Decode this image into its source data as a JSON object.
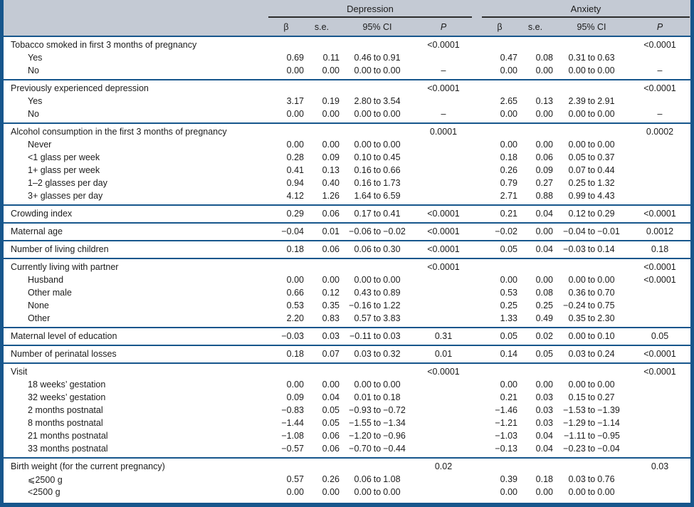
{
  "colors": {
    "accent_blue": "#17568c",
    "header_band_bg": "#c4cad4",
    "rule_black": "#2b2b2b"
  },
  "table": {
    "groups": [
      {
        "label": "Depression"
      },
      {
        "label": "Anxiety"
      }
    ],
    "subheaders": [
      "β",
      "s.e.",
      "95% CI",
      "P"
    ],
    "sections": [
      {
        "label": "Tobacco smoked in first 3 months of pregnancy",
        "dep": {
          "b": "",
          "se": "",
          "ci": "",
          "p": "<0.0001"
        },
        "anx": {
          "b": "",
          "se": "",
          "ci": "",
          "p": "<0.0001"
        },
        "rows": [
          {
            "label": "Yes",
            "dep": {
              "b": "0.69",
              "se": "0.11",
              "ci": "0.46 to 0.91",
              "p": ""
            },
            "anx": {
              "b": "0.47",
              "se": "0.08",
              "ci": "0.31 to 0.63",
              "p": ""
            }
          },
          {
            "label": "No",
            "dep": {
              "b": "0.00",
              "se": "0.00",
              "ci": "0.00 to 0.00",
              "p": "–"
            },
            "anx": {
              "b": "0.00",
              "se": "0.00",
              "ci": "0.00 to 0.00",
              "p": "–"
            }
          }
        ]
      },
      {
        "label": "Previously experienced depression",
        "dep": {
          "b": "",
          "se": "",
          "ci": "",
          "p": "<0.0001"
        },
        "anx": {
          "b": "",
          "se": "",
          "ci": "",
          "p": "<0.0001"
        },
        "rows": [
          {
            "label": "Yes",
            "dep": {
              "b": "3.17",
              "se": "0.19",
              "ci": "2.80 to 3.54",
              "p": ""
            },
            "anx": {
              "b": "2.65",
              "se": "0.13",
              "ci": "2.39 to 2.91",
              "p": ""
            }
          },
          {
            "label": "No",
            "dep": {
              "b": "0.00",
              "se": "0.00",
              "ci": "0.00 to 0.00",
              "p": "–"
            },
            "anx": {
              "b": "0.00",
              "se": "0.00",
              "ci": "0.00 to 0.00",
              "p": "–"
            }
          }
        ]
      },
      {
        "label": "Alcohol consumption in the first 3 months of pregnancy",
        "dep": {
          "b": "",
          "se": "",
          "ci": "",
          "p": "0.0001"
        },
        "anx": {
          "b": "",
          "se": "",
          "ci": "",
          "p": "0.0002"
        },
        "rows": [
          {
            "label": "Never",
            "dep": {
              "b": "0.00",
              "se": "0.00",
              "ci": "0.00 to 0.00",
              "p": ""
            },
            "anx": {
              "b": "0.00",
              "se": "0.00",
              "ci": "0.00 to 0.00",
              "p": ""
            }
          },
          {
            "label": "<1 glass per week",
            "dep": {
              "b": "0.28",
              "se": "0.09",
              "ci": "0.10 to 0.45",
              "p": ""
            },
            "anx": {
              "b": "0.18",
              "se": "0.06",
              "ci": "0.05 to 0.37",
              "p": ""
            }
          },
          {
            "label": "1+ glass per week",
            "dep": {
              "b": "0.41",
              "se": "0.13",
              "ci": "0.16 to 0.66",
              "p": ""
            },
            "anx": {
              "b": "0.26",
              "se": "0.09",
              "ci": "0.07 to 0.44",
              "p": ""
            }
          },
          {
            "label": "1–2 glasses per day",
            "dep": {
              "b": "0.94",
              "se": "0.40",
              "ci": "0.16 to 1.73",
              "p": ""
            },
            "anx": {
              "b": "0.79",
              "se": "0.27",
              "ci": "0.25 to 1.32",
              "p": ""
            }
          },
          {
            "label": "3+ glasses per day",
            "dep": {
              "b": "4.12",
              "se": "1.26",
              "ci": "1.64 to 6.59",
              "p": ""
            },
            "anx": {
              "b": "2.71",
              "se": "0.88",
              "ci": "0.99 to 4.43",
              "p": ""
            }
          }
        ]
      },
      {
        "label": "Crowding index",
        "dep": {
          "b": "0.29",
          "se": "0.06",
          "ci": "0.17 to 0.41",
          "p": "<0.0001"
        },
        "anx": {
          "b": "0.21",
          "se": "0.04",
          "ci": "0.12 to 0.29",
          "p": "<0.0001"
        },
        "rows": []
      },
      {
        "label": "Maternal age",
        "dep": {
          "b": "−0.04",
          "se": "0.01",
          "ci": "−0.06 to −0.02",
          "p": "<0.0001"
        },
        "anx": {
          "b": "−0.02",
          "se": "0.00",
          "ci": "−0.04 to −0.01",
          "p": "0.0012"
        },
        "rows": []
      },
      {
        "label": "Number of living children",
        "dep": {
          "b": "0.18",
          "se": "0.06",
          "ci": "0.06 to 0.30",
          "p": "<0.0001"
        },
        "anx": {
          "b": "0.05",
          "se": "0.04",
          "ci": "−0.03 to 0.14",
          "p": "0.18"
        },
        "rows": []
      },
      {
        "label": "Currently living with partner",
        "dep": {
          "b": "",
          "se": "",
          "ci": "",
          "p": "<0.0001"
        },
        "anx": {
          "b": "",
          "se": "",
          "ci": "",
          "p": "<0.0001"
        },
        "rows": [
          {
            "label": "Husband",
            "dep": {
              "b": "0.00",
              "se": "0.00",
              "ci": "0.00 to 0.00",
              "p": ""
            },
            "anx": {
              "b": "0.00",
              "se": "0.00",
              "ci": "0.00 to 0.00",
              "p": "<0.0001"
            }
          },
          {
            "label": "Other male",
            "dep": {
              "b": "0.66",
              "se": "0.12",
              "ci": "0.43 to 0.89",
              "p": ""
            },
            "anx": {
              "b": "0.53",
              "se": "0.08",
              "ci": "0.36 to 0.70",
              "p": ""
            }
          },
          {
            "label": "None",
            "dep": {
              "b": "0.53",
              "se": "0.35",
              "ci": "−0.16 to 1.22",
              "p": ""
            },
            "anx": {
              "b": "0.25",
              "se": "0.25",
              "ci": "−0.24 to 0.75",
              "p": ""
            }
          },
          {
            "label": "Other",
            "dep": {
              "b": "2.20",
              "se": "0.83",
              "ci": "0.57 to 3.83",
              "p": ""
            },
            "anx": {
              "b": "1.33",
              "se": "0.49",
              "ci": "0.35 to 2.30",
              "p": ""
            }
          }
        ]
      },
      {
        "label": "Maternal level of education",
        "dep": {
          "b": "−0.03",
          "se": "0.03",
          "ci": "−0.11 to 0.03",
          "p": "0.31"
        },
        "anx": {
          "b": "0.05",
          "se": "0.02",
          "ci": "0.00 to 0.10",
          "p": "0.05"
        },
        "rows": []
      },
      {
        "label": "Number of perinatal losses",
        "dep": {
          "b": "0.18",
          "se": "0.07",
          "ci": "0.03 to 0.32",
          "p": "0.01"
        },
        "anx": {
          "b": "0.14",
          "se": "0.05",
          "ci": "0.03 to 0.24",
          "p": "<0.0001"
        },
        "rows": []
      },
      {
        "label": "Visit",
        "dep": {
          "b": "",
          "se": "",
          "ci": "",
          "p": "<0.0001"
        },
        "anx": {
          "b": "",
          "se": "",
          "ci": "",
          "p": "<0.0001"
        },
        "rows": [
          {
            "label": "18 weeks’ gestation",
            "dep": {
              "b": "0.00",
              "se": "0.00",
              "ci": "0.00 to 0.00",
              "p": ""
            },
            "anx": {
              "b": "0.00",
              "se": "0.00",
              "ci": "0.00 to 0.00",
              "p": ""
            }
          },
          {
            "label": "32 weeks’ gestation",
            "dep": {
              "b": "0.09",
              "se": "0.04",
              "ci": "0.01 to 0.18",
              "p": ""
            },
            "anx": {
              "b": "0.21",
              "se": "0.03",
              "ci": "0.15 to 0.27",
              "p": ""
            }
          },
          {
            "label": "2 months postnatal",
            "dep": {
              "b": "−0.83",
              "se": "0.05",
              "ci": "−0.93 to −0.72",
              "p": ""
            },
            "anx": {
              "b": "−1.46",
              "se": "0.03",
              "ci": "−1.53 to −1.39",
              "p": ""
            }
          },
          {
            "label": "8 months postnatal",
            "dep": {
              "b": "−1.44",
              "se": "0.05",
              "ci": "−1.55 to −1.34",
              "p": ""
            },
            "anx": {
              "b": "−1.21",
              "se": "0.03",
              "ci": "−1.29 to −1.14",
              "p": ""
            }
          },
          {
            "label": "21 months postnatal",
            "dep": {
              "b": "−1.08",
              "se": "0.06",
              "ci": "−1.20 to −0.96",
              "p": ""
            },
            "anx": {
              "b": "−1.03",
              "se": "0.04",
              "ci": "−1.11 to −0.95",
              "p": ""
            }
          },
          {
            "label": "33 months postnatal",
            "dep": {
              "b": "−0.57",
              "se": "0.06",
              "ci": "−0.70 to −0.44",
              "p": ""
            },
            "anx": {
              "b": "−0.13",
              "se": "0.04",
              "ci": "−0.23 to −0.04",
              "p": ""
            }
          }
        ]
      },
      {
        "label": "Birth weight (for the current pregnancy)",
        "dep": {
          "b": "",
          "se": "",
          "ci": "",
          "p": "0.02"
        },
        "anx": {
          "b": "",
          "se": "",
          "ci": "",
          "p": "0.03"
        },
        "rows": [
          {
            "label": "⩽2500 g",
            "dep": {
              "b": "0.57",
              "se": "0.26",
              "ci": "0.06 to 1.08",
              "p": ""
            },
            "anx": {
              "b": "0.39",
              "se": "0.18",
              "ci": "0.03 to 0.76",
              "p": ""
            }
          },
          {
            "label": "<2500 g",
            "dep": {
              "b": "0.00",
              "se": "0.00",
              "ci": "0.00 to 0.00",
              "p": ""
            },
            "anx": {
              "b": "0.00",
              "se": "0.00",
              "ci": "0.00 to 0.00",
              "p": ""
            }
          }
        ]
      }
    ]
  }
}
